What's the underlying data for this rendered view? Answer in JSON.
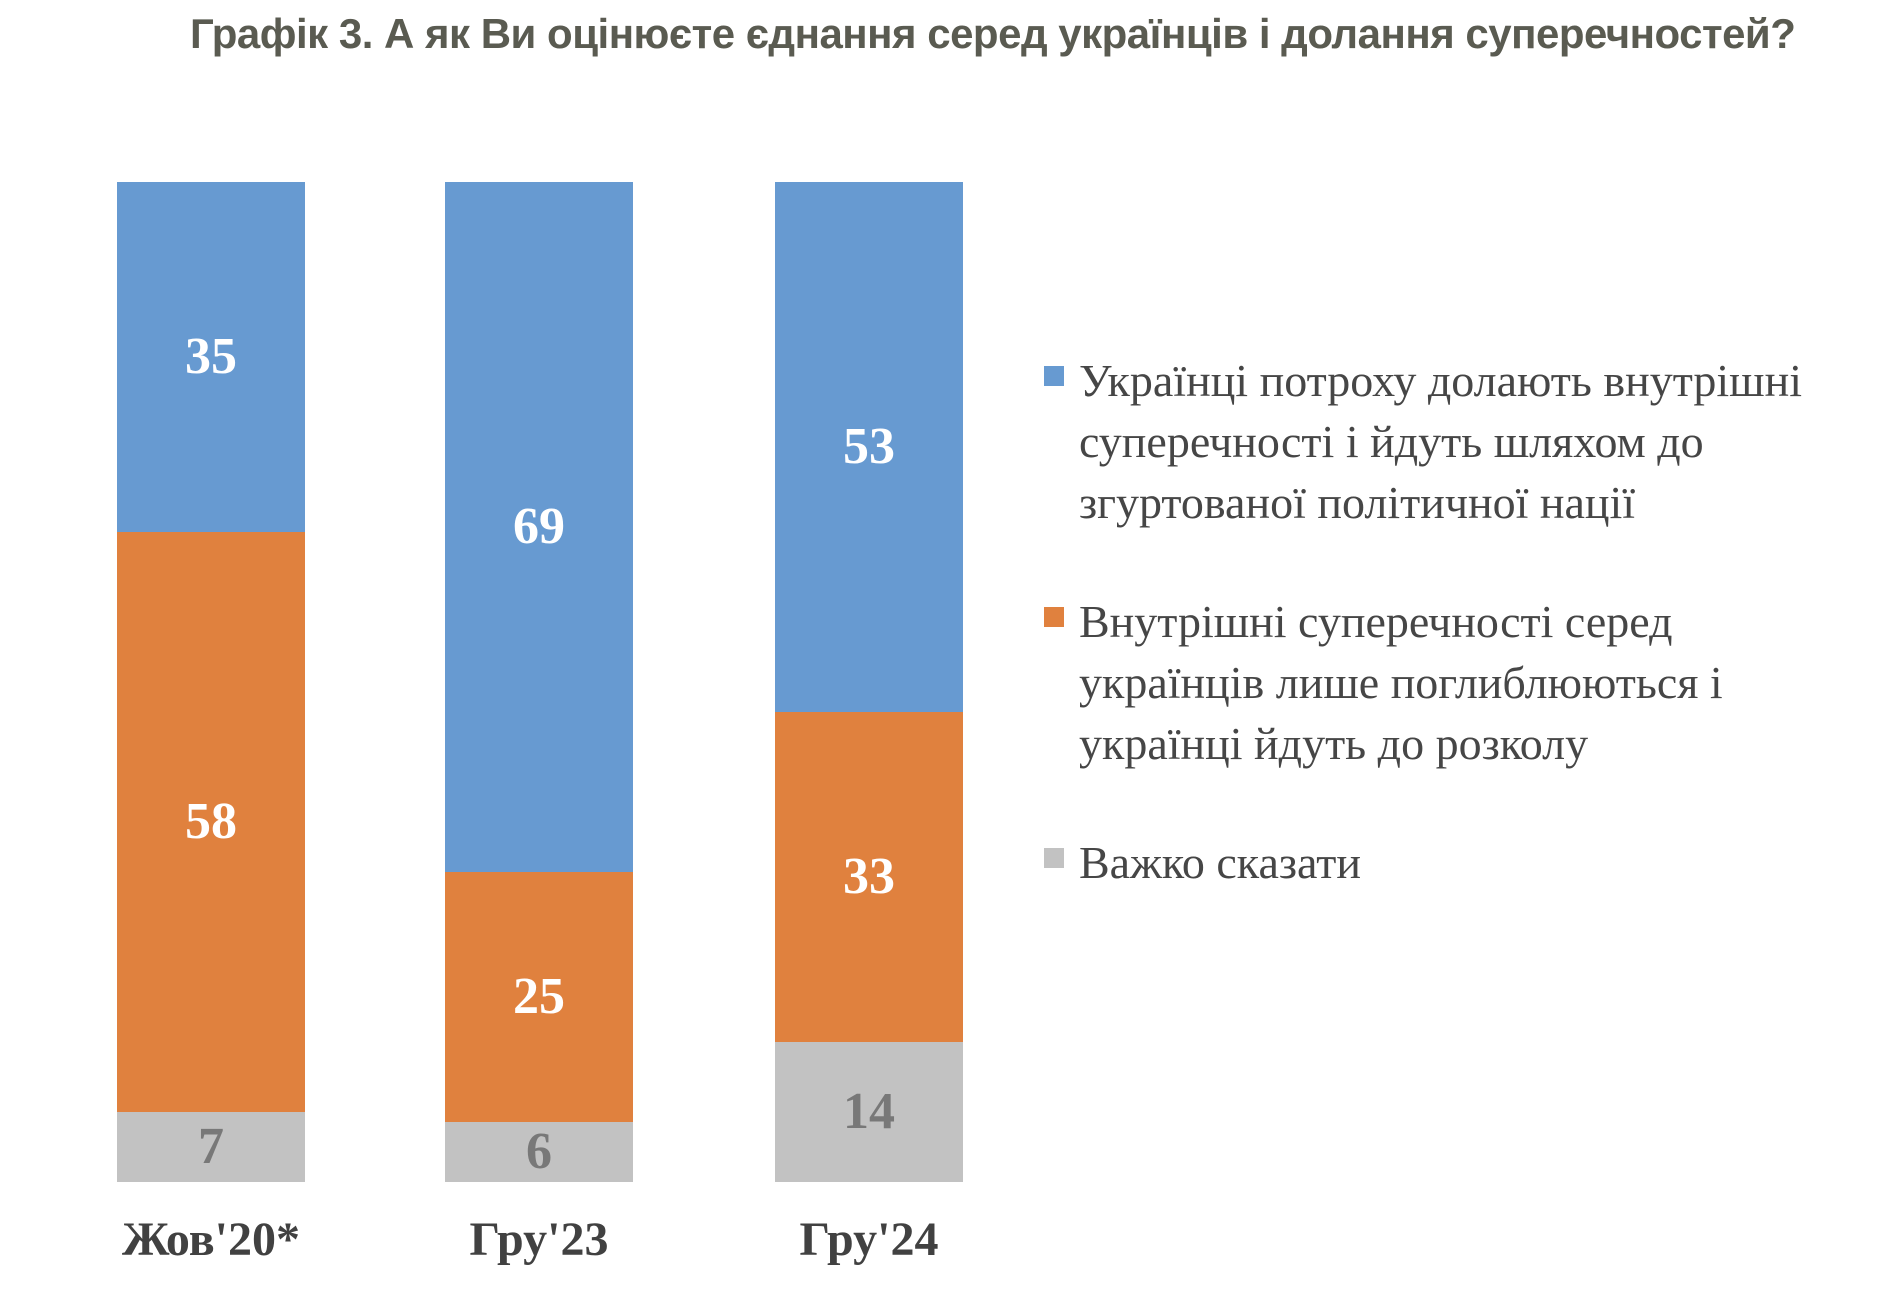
{
  "chart_data": {
    "type": "bar",
    "subtype": "stacked-vertical-column",
    "title": "Графік 3. А як Ви оцінюєте єднання серед українців і долання суперечностей?",
    "categories": [
      "Жов'20*",
      "Гру'23",
      "Гру'24"
    ],
    "series": [
      {
        "name": "Українці потроху долають внутрішні суперечності і йдуть шляхом до згуртованої політичної нації",
        "color": "#679AD1",
        "label_color": "#FFFFFF",
        "values": [
          35,
          69,
          53
        ]
      },
      {
        "name": "Внутрішні суперечності серед українців лише поглиблюються і українці йдуть до розколу",
        "color": "#E0813E",
        "label_color": "#FFFFFF",
        "values": [
          58,
          25,
          33
        ]
      },
      {
        "name": "Важко сказати",
        "color": "#C2C2C2",
        "label_color": "#787878",
        "values": [
          7,
          6,
          14
        ]
      }
    ],
    "value_range": [
      0,
      100
    ],
    "stack_total": 100,
    "value_labels": "centered-in-segment",
    "legend_position": "right",
    "grid": false,
    "axes_visible": false,
    "title_color": "#5A5B51"
  }
}
